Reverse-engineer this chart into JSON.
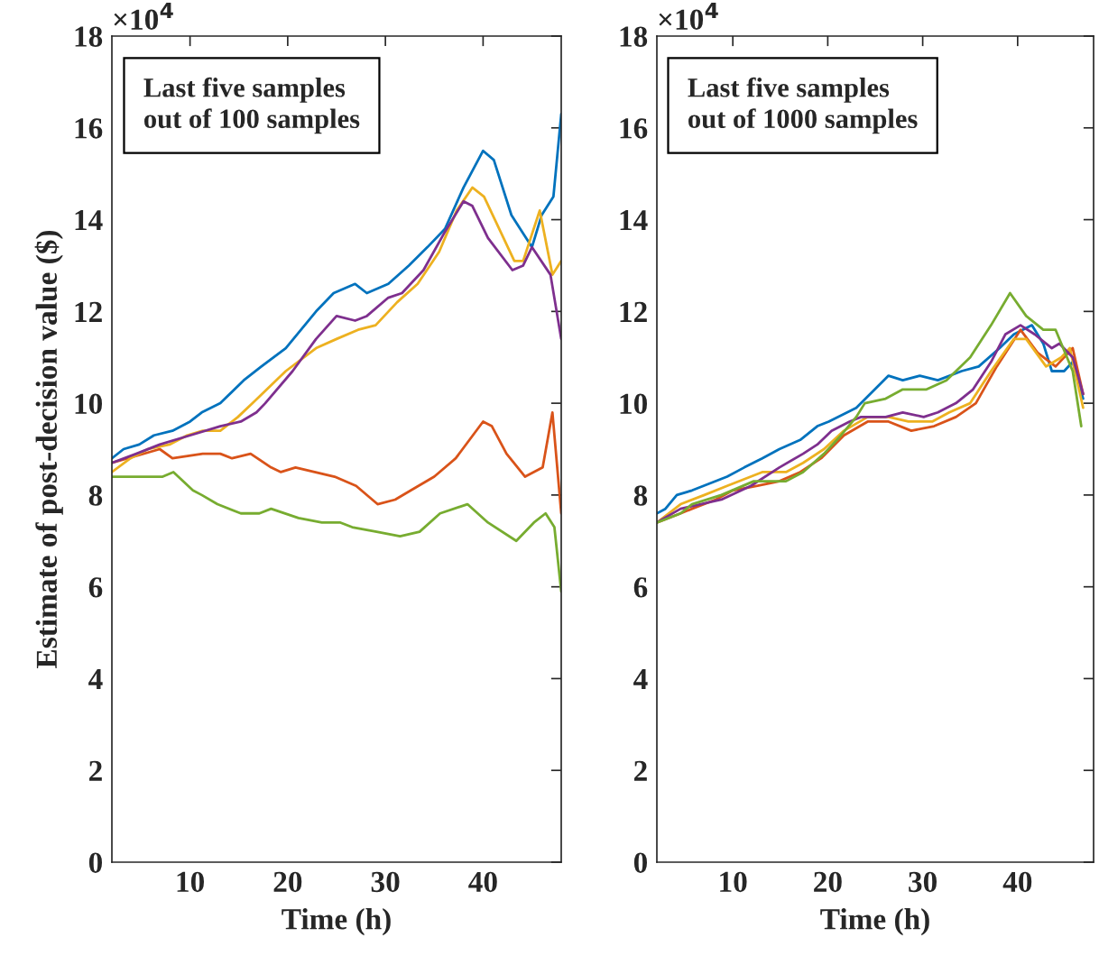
{
  "chart_data": [
    {
      "type": "line",
      "ylabel": "Estimate of post-decision value ($)",
      "xlabel": "Time (h)",
      "xlim": [
        2,
        48
      ],
      "xticks": [
        10,
        20,
        30,
        40
      ],
      "ylim": [
        0,
        18
      ],
      "yticks": [
        0,
        2,
        4,
        6,
        8,
        10,
        12,
        14,
        16,
        18
      ],
      "grid": false,
      "legend": false,
      "annotations": [
        "×10$^{4}$",
        "Last five samples\nout of 100 samples"
      ],
      "series": [
        {
          "color": "#0072bd",
          "x": [
            2,
            3.2,
            4.8,
            6.3,
            8.2,
            10,
            11.2,
            13.1,
            15.5,
            17.3,
            19.8,
            22.9,
            24.7,
            26.9,
            28.1,
            30.3,
            32.4,
            34.3,
            36.1,
            38,
            40,
            41.1,
            42.9,
            45,
            46,
            47.2,
            48
          ],
          "values": [
            8.8,
            9.0,
            9.1,
            9.3,
            9.4,
            9.6,
            9.8,
            10.0,
            10.5,
            10.8,
            11.2,
            12.0,
            12.4,
            12.6,
            12.4,
            12.6,
            13.0,
            13.4,
            13.8,
            14.7,
            15.5,
            15.3,
            14.1,
            13.4,
            14.1,
            14.5,
            16.3
          ]
        },
        {
          "color": "#d95319",
          "x": [
            2,
            6.9,
            8.2,
            11.3,
            13.1,
            14.3,
            16.2,
            18.3,
            19.3,
            20.8,
            24.8,
            27,
            29.2,
            31,
            32.6,
            35,
            37.2,
            40,
            40.9,
            42.4,
            44.3,
            46.1,
            47.1,
            48
          ],
          "values": [
            8.7,
            9.0,
            8.8,
            8.9,
            8.9,
            8.8,
            8.9,
            8.6,
            8.5,
            8.6,
            8.4,
            8.2,
            7.8,
            7.9,
            8.1,
            8.4,
            8.8,
            9.6,
            9.5,
            8.9,
            8.4,
            8.6,
            9.8,
            7.6
          ]
        },
        {
          "color": "#edb120",
          "x": [
            2,
            3.9,
            5.7,
            7.9,
            9.7,
            11.3,
            13.1,
            14.9,
            16.4,
            19.8,
            22.9,
            25,
            27.2,
            29,
            31.2,
            33.3,
            35.5,
            37.3,
            38.9,
            40.1,
            43.2,
            44.1,
            45.8,
            47.1,
            48
          ],
          "values": [
            8.5,
            8.8,
            9.0,
            9.1,
            9.3,
            9.4,
            9.4,
            9.7,
            10.0,
            10.7,
            11.2,
            11.4,
            11.6,
            11.7,
            12.2,
            12.6,
            13.3,
            14.2,
            14.7,
            14.5,
            13.1,
            13.1,
            14.2,
            12.8,
            13.1
          ]
        },
        {
          "color": "#7e2f8e",
          "x": [
            2,
            4.5,
            6.9,
            10,
            13.1,
            15.2,
            16.8,
            17.7,
            20.5,
            22.9,
            25,
            26.9,
            28.1,
            30.3,
            31.7,
            33.9,
            36,
            38,
            38.9,
            40.5,
            43,
            44.1,
            45,
            46.9,
            48
          ],
          "values": [
            8.7,
            8.9,
            9.1,
            9.3,
            9.5,
            9.6,
            9.8,
            10.0,
            10.7,
            11.4,
            11.9,
            11.8,
            11.9,
            12.3,
            12.4,
            12.9,
            13.7,
            14.4,
            14.3,
            13.6,
            12.9,
            13.0,
            13.4,
            12.8,
            11.4
          ]
        },
        {
          "color": "#77ac30",
          "x": [
            2,
            4.5,
            5.4,
            6.3,
            7.2,
            8.3,
            10.3,
            11.2,
            12.8,
            15.2,
            17.1,
            18.3,
            21.1,
            23.5,
            25.4,
            26.6,
            29.1,
            31.5,
            33.5,
            35.6,
            38.4,
            40.5,
            43.4,
            45.2,
            46.4,
            47.3,
            48
          ],
          "values": [
            8.4,
            8.4,
            8.4,
            8.4,
            8.4,
            8.5,
            8.1,
            8.0,
            7.8,
            7.6,
            7.6,
            7.7,
            7.5,
            7.4,
            7.4,
            7.3,
            7.2,
            7.1,
            7.2,
            7.6,
            7.8,
            7.4,
            7.0,
            7.4,
            7.6,
            7.3,
            5.9
          ]
        }
      ]
    },
    {
      "type": "line",
      "xlabel": "Time (h)",
      "xlim": [
        2,
        48
      ],
      "xticks": [
        10,
        20,
        30,
        40
      ],
      "ylim": [
        0,
        18
      ],
      "yticks": [
        0,
        2,
        4,
        6,
        8,
        10,
        12,
        14,
        16,
        18
      ],
      "grid": false,
      "legend": false,
      "annotations": [
        "×10$^{4}$",
        "Last five samples\nout of 1000 samples"
      ],
      "series": [
        {
          "color": "#0072bd",
          "x": [
            2,
            2.9,
            4.1,
            5.7,
            9.4,
            11.2,
            13.1,
            14.9,
            17.1,
            18.9,
            20.1,
            23,
            26.4,
            27.9,
            29.7,
            31.6,
            34.1,
            35.9,
            38.1,
            39.6,
            41.5,
            42.7,
            43.6,
            44.9,
            45.8,
            46.9
          ],
          "values": [
            7.6,
            7.7,
            8.0,
            8.1,
            8.4,
            8.6,
            8.8,
            9.0,
            9.2,
            9.5,
            9.6,
            9.9,
            10.6,
            10.5,
            10.6,
            10.5,
            10.7,
            10.8,
            11.2,
            11.5,
            11.7,
            11.3,
            10.7,
            10.7,
            10.9,
            10.1
          ]
        },
        {
          "color": "#d95319",
          "x": [
            2,
            4.5,
            5.7,
            8.2,
            10,
            12.6,
            14.9,
            17.1,
            19.3,
            21.7,
            24.2,
            26.4,
            28.8,
            31.2,
            33.5,
            35.6,
            37.8,
            40.3,
            42.1,
            44,
            45.8,
            46.9
          ],
          "values": [
            7.4,
            7.6,
            7.7,
            7.9,
            8.1,
            8.2,
            8.3,
            8.5,
            8.8,
            9.3,
            9.6,
            9.6,
            9.4,
            9.5,
            9.7,
            10.0,
            10.8,
            11.6,
            11.1,
            10.8,
            11.2,
            10.2
          ]
        },
        {
          "color": "#edb120",
          "x": [
            2,
            4.5,
            7,
            9.4,
            13.1,
            15.6,
            17.4,
            19.6,
            21.7,
            24.2,
            26.4,
            28.5,
            31,
            32.8,
            35,
            37.2,
            39.6,
            40.9,
            43,
            44.6,
            45.5,
            46.9
          ],
          "values": [
            7.4,
            7.8,
            8.0,
            8.2,
            8.5,
            8.5,
            8.7,
            9.0,
            9.4,
            9.7,
            9.7,
            9.6,
            9.6,
            9.8,
            10.0,
            10.7,
            11.4,
            11.4,
            10.8,
            11.0,
            11.2,
            9.9
          ]
        },
        {
          "color": "#7e2f8e",
          "x": [
            2,
            4.5,
            8.8,
            11.9,
            14.9,
            17.4,
            18.9,
            20.4,
            22.3,
            23.5,
            26.1,
            27.9,
            30.1,
            31.6,
            33.5,
            35.3,
            37.2,
            38.7,
            40.3,
            41.8,
            43.6,
            44.4,
            45.8,
            46.9
          ],
          "values": [
            7.4,
            7.7,
            7.9,
            8.2,
            8.6,
            8.9,
            9.1,
            9.4,
            9.6,
            9.7,
            9.7,
            9.8,
            9.7,
            9.8,
            10.0,
            10.3,
            10.9,
            11.5,
            11.7,
            11.5,
            11.2,
            11.3,
            11.0,
            10.2
          ]
        },
        {
          "color": "#77ac30",
          "x": [
            2,
            4.5,
            5.7,
            8.8,
            12.2,
            15.6,
            17.4,
            19.6,
            21.4,
            23,
            23.9,
            26.1,
            27.9,
            30.4,
            32.5,
            35,
            37.2,
            39.2,
            40.9,
            42.7,
            44,
            45.8,
            46.7
          ],
          "values": [
            7.4,
            7.6,
            7.8,
            8.0,
            8.3,
            8.3,
            8.5,
            8.9,
            9.3,
            9.7,
            10.0,
            10.1,
            10.3,
            10.3,
            10.5,
            11.0,
            11.7,
            12.4,
            11.9,
            11.6,
            11.6,
            10.7,
            9.5
          ]
        }
      ]
    }
  ]
}
